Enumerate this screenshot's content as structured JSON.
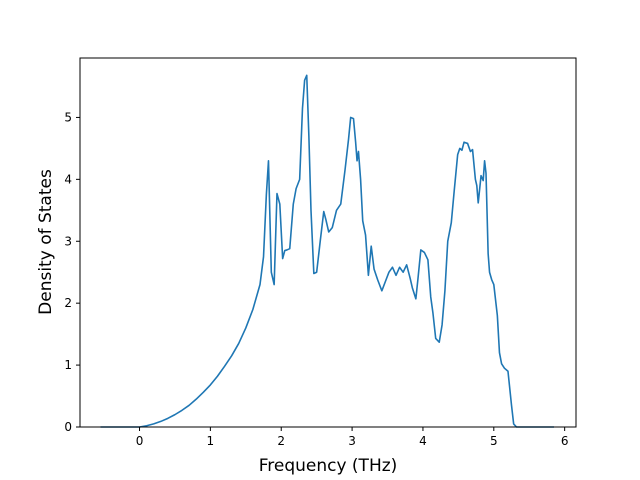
{
  "chart_data": {
    "type": "line",
    "title": "",
    "xlabel": "Frequency (THz)",
    "ylabel": "Density of States",
    "xlim": [
      -0.84,
      6.16
    ],
    "ylim": [
      0,
      5.96
    ],
    "xticks": [
      0,
      1,
      2,
      3,
      4,
      5,
      6
    ],
    "yticks": [
      0,
      1,
      2,
      3,
      4,
      5
    ],
    "grid": false,
    "line_color": "#1f77b4",
    "series": [
      {
        "x": [
          -0.55,
          -0.3,
          -0.1,
          0.0,
          0.1,
          0.2,
          0.3,
          0.4,
          0.5,
          0.6,
          0.7,
          0.8,
          0.9,
          1.0,
          1.1,
          1.2,
          1.3,
          1.4,
          1.5,
          1.6,
          1.7,
          1.75,
          1.79,
          1.82,
          1.86,
          1.9,
          1.94,
          1.98,
          2.02,
          2.05,
          2.08,
          2.12,
          2.17,
          2.21,
          2.26,
          2.3,
          2.33,
          2.36,
          2.39,
          2.42,
          2.46,
          2.5,
          2.55,
          2.6,
          2.63,
          2.67,
          2.72,
          2.78,
          2.84,
          2.9,
          2.95,
          2.98,
          3.02,
          3.05,
          3.07,
          3.09,
          3.12,
          3.15,
          3.19,
          3.23,
          3.27,
          3.31,
          3.36,
          3.42,
          3.47,
          3.52,
          3.57,
          3.62,
          3.67,
          3.72,
          3.77,
          3.82,
          3.85,
          3.9,
          3.93,
          3.97,
          4.02,
          4.07,
          4.11,
          4.14,
          4.18,
          4.23,
          4.27,
          4.31,
          4.35,
          4.4,
          4.44,
          4.49,
          4.52,
          4.55,
          4.58,
          4.63,
          4.67,
          4.7,
          4.74,
          4.76,
          4.78,
          4.82,
          4.85,
          4.87,
          4.89,
          4.92,
          4.94,
          4.97,
          5.0,
          5.05,
          5.08,
          5.11,
          5.15,
          5.2,
          5.25,
          5.28,
          5.32,
          5.5,
          5.85
        ],
        "values": [
          0.0,
          0.0,
          0.0,
          0.0,
          0.02,
          0.05,
          0.09,
          0.14,
          0.2,
          0.27,
          0.35,
          0.45,
          0.56,
          0.68,
          0.82,
          0.98,
          1.15,
          1.35,
          1.6,
          1.9,
          2.3,
          2.75,
          3.75,
          4.3,
          2.5,
          2.3,
          3.77,
          3.6,
          2.72,
          2.85,
          2.86,
          2.88,
          3.6,
          3.85,
          4.0,
          5.15,
          5.6,
          5.68,
          4.7,
          3.5,
          2.48,
          2.5,
          3.0,
          3.48,
          3.35,
          3.15,
          3.22,
          3.5,
          3.6,
          4.15,
          4.65,
          5.0,
          4.98,
          4.6,
          4.3,
          4.45,
          4.0,
          3.33,
          3.1,
          2.45,
          2.92,
          2.55,
          2.38,
          2.2,
          2.35,
          2.5,
          2.58,
          2.45,
          2.58,
          2.5,
          2.62,
          2.4,
          2.25,
          2.07,
          2.4,
          2.86,
          2.82,
          2.7,
          2.1,
          1.85,
          1.43,
          1.37,
          1.65,
          2.2,
          3.0,
          3.3,
          3.8,
          4.4,
          4.5,
          4.47,
          4.6,
          4.58,
          4.45,
          4.48,
          4.0,
          3.9,
          3.62,
          4.06,
          3.98,
          4.3,
          4.1,
          2.8,
          2.5,
          2.38,
          2.3,
          1.8,
          1.2,
          1.02,
          0.95,
          0.9,
          0.35,
          0.05,
          0.0,
          0.0,
          0.0
        ]
      }
    ]
  }
}
